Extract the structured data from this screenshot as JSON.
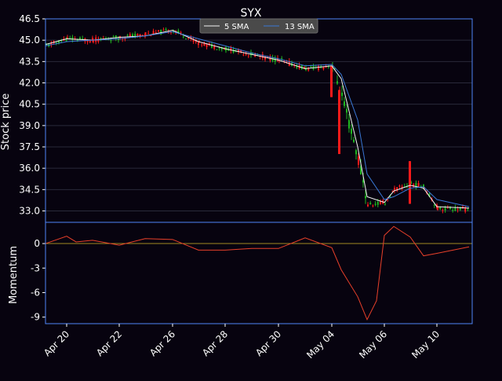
{
  "chart_data": [
    {
      "type": "candlestick-line",
      "title": "SYX",
      "ylabel": "Stock price",
      "ylim": [
        32.2,
        46.5
      ],
      "yticks": [
        33.0,
        34.5,
        36.0,
        37.5,
        39.0,
        40.5,
        42.0,
        43.5,
        45.0,
        46.5
      ],
      "x_tick_labels": [
        "Apr 20",
        "Apr 22",
        "Apr 26",
        "Apr 28",
        "Apr 30",
        "May 04",
        "May 06",
        "May 10"
      ],
      "legend": {
        "placement": "top-center",
        "entries": [
          "5 SMA",
          "13 SMA"
        ]
      },
      "grid": true,
      "colors": {
        "up": "#1fb51f",
        "down": "#ff1a1a",
        "sma5": "#f2f2f2",
        "sma13": "#3a78d6",
        "frame": "#4f86f7",
        "grid": "#2a2a3a",
        "background": "#07030f"
      },
      "price_path": [
        [
          "Apr 19",
          44.6
        ],
        [
          "Apr 20",
          45.1
        ],
        [
          "Apr 21",
          45.0
        ],
        [
          "Apr 22",
          45.2
        ],
        [
          "Apr 23",
          45.4
        ],
        [
          "Apr 26",
          45.7
        ],
        [
          "Apr 27",
          44.8
        ],
        [
          "Apr 28",
          44.4
        ],
        [
          "Apr 29",
          44.0
        ],
        [
          "Apr 30",
          43.6
        ],
        [
          "May 03",
          43.0
        ],
        [
          "May 04",
          43.2
        ],
        [
          "May 04",
          41.0
        ],
        [
          "May 05",
          36.6
        ],
        [
          "May 05",
          33.4
        ],
        [
          "May 06",
          33.6
        ],
        [
          "May 06",
          34.5
        ],
        [
          "May 07",
          34.9
        ],
        [
          "May 08",
          34.7
        ],
        [
          "May 10",
          33.2
        ],
        [
          "May 11",
          33.1
        ]
      ],
      "series": [
        {
          "name": "5 SMA",
          "values": [
            [
              "Apr 19",
              44.7
            ],
            [
              "Apr 20",
              45.1
            ],
            [
              "Apr 21",
              45.0
            ],
            [
              "Apr 22",
              45.2
            ],
            [
              "Apr 23",
              45.3
            ],
            [
              "Apr 26",
              45.7
            ],
            [
              "Apr 27",
              44.9
            ],
            [
              "Apr 28",
              44.4
            ],
            [
              "Apr 29",
              44.0
            ],
            [
              "Apr 30",
              43.6
            ],
            [
              "May 03",
              43.0
            ],
            [
              "May 04",
              43.2
            ],
            [
              "May 04",
              42.3
            ],
            [
              "May 05",
              37.5
            ],
            [
              "May 05",
              34.0
            ],
            [
              "May 06",
              33.6
            ],
            [
              "May 06",
              34.4
            ],
            [
              "May 07",
              34.8
            ],
            [
              "May 08",
              34.6
            ],
            [
              "May 10",
              33.3
            ],
            [
              "May 11",
              33.2
            ]
          ]
        },
        {
          "name": "13 SMA",
          "values": [
            [
              "Apr 19",
              44.6
            ],
            [
              "Apr 20",
              44.9
            ],
            [
              "Apr 21",
              45.0
            ],
            [
              "Apr 22",
              45.1
            ],
            [
              "Apr 23",
              45.3
            ],
            [
              "Apr 26",
              45.6
            ],
            [
              "Apr 27",
              45.1
            ],
            [
              "Apr 28",
              44.6
            ],
            [
              "Apr 29",
              44.1
            ],
            [
              "Apr 30",
              43.7
            ],
            [
              "May 03",
              43.2
            ],
            [
              "May 04",
              43.3
            ],
            [
              "May 04",
              42.6
            ],
            [
              "May 05",
              39.4
            ],
            [
              "May 05",
              35.6
            ],
            [
              "May 06",
              33.8
            ],
            [
              "May 06",
              34.0
            ],
            [
              "May 07",
              34.6
            ],
            [
              "May 08",
              34.7
            ],
            [
              "May 10",
              33.8
            ],
            [
              "May 11",
              33.3
            ]
          ]
        }
      ]
    },
    {
      "type": "line",
      "ylabel": "Momentum",
      "ylim": [
        -9.8,
        2.6
      ],
      "yticks": [
        0,
        -3,
        -6,
        -9
      ],
      "reference_line": 0,
      "colors": {
        "line": "#e8402a",
        "zero": "#a08a20"
      },
      "series": [
        {
          "values": [
            [
              "Apr 19",
              0.0
            ],
            [
              "Apr 20",
              0.9
            ],
            [
              "Apr 20",
              0.2
            ],
            [
              "Apr 21",
              0.4
            ],
            [
              "Apr 22",
              -0.2
            ],
            [
              "Apr 23",
              0.6
            ],
            [
              "Apr 26",
              0.5
            ],
            [
              "Apr 27",
              -0.8
            ],
            [
              "Apr 28",
              -0.8
            ],
            [
              "Apr 29",
              -0.6
            ],
            [
              "Apr 30",
              -0.6
            ],
            [
              "May 03",
              0.7
            ],
            [
              "May 04",
              -0.5
            ],
            [
              "May 04",
              -3.2
            ],
            [
              "May 05",
              -6.5
            ],
            [
              "May 05",
              -9.3
            ],
            [
              "May 05",
              -7.0
            ],
            [
              "May 06",
              1.0
            ],
            [
              "May 06",
              2.1
            ],
            [
              "May 07",
              0.8
            ],
            [
              "May 08",
              -1.5
            ],
            [
              "May 10",
              -1.2
            ],
            [
              "May 11",
              -0.4
            ]
          ]
        }
      ]
    }
  ]
}
